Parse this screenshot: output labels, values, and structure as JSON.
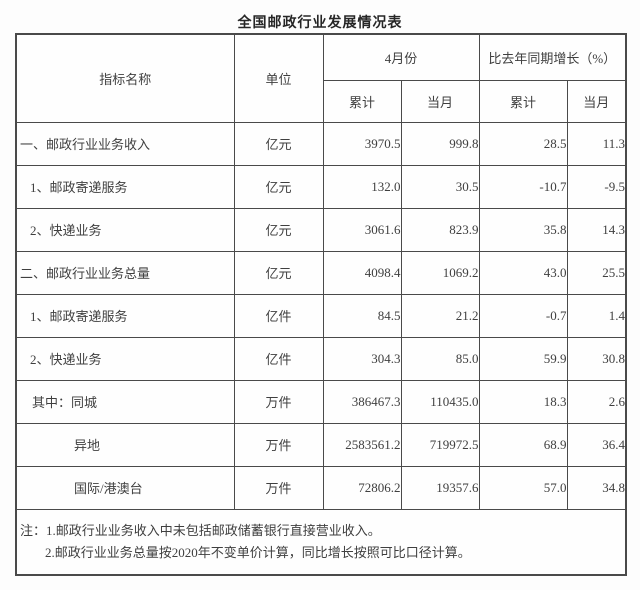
{
  "page_title": "全国邮政行业发展情况表",
  "chart_data": {
    "type": "table",
    "title": "全国邮政行业发展情况表",
    "column_groups": {
      "april": "4月份",
      "growth": "比去年同期增长（%）"
    },
    "columns": {
      "indicator": "指标名称",
      "unit": "单位",
      "cumulative": "累计",
      "current_month": "当月"
    },
    "rows": [
      {
        "label": "一、邮政行业业务收入",
        "unit": "亿元",
        "april_cumulative": "3970.5",
        "april_month": "999.8",
        "growth_cumulative": "28.5",
        "growth_month": "11.3"
      },
      {
        "label": "1、邮政寄递服务",
        "unit": "亿元",
        "april_cumulative": "132.0",
        "april_month": "30.5",
        "growth_cumulative": "-10.7",
        "growth_month": "-9.5"
      },
      {
        "label": "2、快递业务",
        "unit": "亿元",
        "april_cumulative": "3061.6",
        "april_month": "823.9",
        "growth_cumulative": "35.8",
        "growth_month": "14.3"
      },
      {
        "label": "二、邮政行业业务总量",
        "unit": "亿元",
        "april_cumulative": "4098.4",
        "april_month": "1069.2",
        "growth_cumulative": "43.0",
        "growth_month": "25.5"
      },
      {
        "label": "1、邮政寄递服务",
        "unit": "亿件",
        "april_cumulative": "84.5",
        "april_month": "21.2",
        "growth_cumulative": "-0.7",
        "growth_month": "1.4"
      },
      {
        "label": "2、快递业务",
        "unit": "亿件",
        "april_cumulative": "304.3",
        "april_month": "85.0",
        "growth_cumulative": "59.9",
        "growth_month": "30.8"
      },
      {
        "label": "其中：同城",
        "unit": "万件",
        "april_cumulative": "386467.3",
        "april_month": "110435.0",
        "growth_cumulative": "18.3",
        "growth_month": "2.6"
      },
      {
        "label": "异地",
        "unit": "万件",
        "april_cumulative": "2583561.2",
        "april_month": "719972.5",
        "growth_cumulative": "68.9",
        "growth_month": "36.4"
      },
      {
        "label": "国际/港澳台",
        "unit": "万件",
        "april_cumulative": "72806.2",
        "april_month": "19357.6",
        "growth_cumulative": "57.0",
        "growth_month": "34.8"
      }
    ],
    "notes": [
      "注：1.邮政行业业务收入中未包括邮政储蓄银行直接营业收入。",
      "2.邮政行业业务总量按2020年不变单价计算，同比增长按照可比口径计算。"
    ],
    "layout": {
      "grid": "bordered",
      "number_alignment": "right"
    },
    "colors": {
      "border": "#4a4a4a",
      "text": "#3f3f3f",
      "background": "#fdfdfd"
    }
  }
}
